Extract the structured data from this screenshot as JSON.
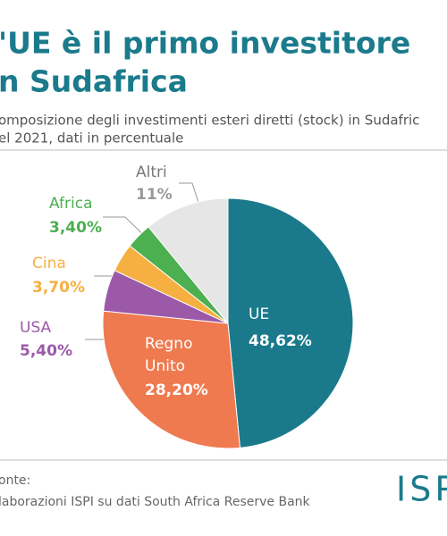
{
  "chart_data": {
    "type": "pie",
    "title": [
      "'UE è il primo investitore",
      "n Sudafrica"
    ],
    "subtitle": [
      "omposizione degli investimenti esteri diretti (stock) in Sudafric",
      "el 2021, dati in percentuale"
    ],
    "categories": [
      "UE",
      "Regno Unito",
      "USA",
      "Cina",
      "Africa",
      "Altri"
    ],
    "values": [
      48.62,
      28.2,
      5.4,
      3.7,
      3.4,
      11
    ],
    "value_labels": [
      "48,62%",
      "28,20%",
      "5,40%",
      "3,70%",
      "3,40%",
      "11%"
    ],
    "colors": [
      "#1a7a8c",
      "#ef7a50",
      "#9b59a8",
      "#f5b041",
      "#4caf50",
      "#e6e6e6"
    ],
    "source": [
      "onte:",
      "laborazioni ISPI su dati South Africa Reserve Bank"
    ],
    "logo": "ISP"
  }
}
